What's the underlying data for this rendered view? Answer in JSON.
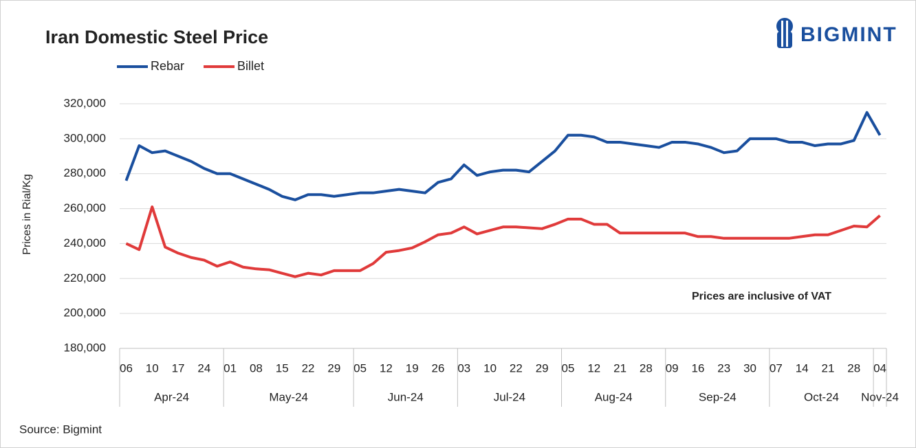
{
  "brand": "BIGMINT",
  "source": "Source: Bigmint",
  "chart_data": {
    "type": "line",
    "title": "Iran Domestic Steel Price",
    "y_label": "Prices in Rial/Kg",
    "annotation": "Prices are inclusive of VAT",
    "legend": "top-left",
    "grid": true,
    "categories": [
      "06",
      null,
      "10",
      null,
      "17",
      null,
      "24",
      null,
      "01",
      null,
      "08",
      null,
      "15",
      null,
      "22",
      null,
      "29",
      null,
      "05",
      null,
      "12",
      null,
      "19",
      null,
      "26",
      null,
      "03",
      null,
      "10",
      null,
      "22",
      null,
      "29",
      null,
      "05",
      null,
      "12",
      null,
      "21",
      null,
      "28",
      null,
      "09",
      null,
      "16",
      null,
      "23",
      null,
      "30",
      null,
      "07",
      null,
      "14",
      null,
      "21",
      null,
      "28",
      null,
      "04"
    ],
    "category_groups": [
      "Apr-24",
      "Apr-24",
      "Apr-24",
      "Apr-24",
      "Apr-24",
      "Apr-24",
      "Apr-24",
      "Apr-24",
      "May-24",
      "May-24",
      "May-24",
      "May-24",
      "May-24",
      "May-24",
      "May-24",
      "May-24",
      "May-24",
      "May-24",
      "Jun-24",
      "Jun-24",
      "Jun-24",
      "Jun-24",
      "Jun-24",
      "Jun-24",
      "Jun-24",
      "Jun-24",
      "Jul-24",
      "Jul-24",
      "Jul-24",
      "Jul-24",
      "Jul-24",
      "Jul-24",
      "Jul-24",
      "Jul-24",
      "Aug-24",
      "Aug-24",
      "Aug-24",
      "Aug-24",
      "Aug-24",
      "Aug-24",
      "Aug-24",
      "Aug-24",
      "Sep-24",
      "Sep-24",
      "Sep-24",
      "Sep-24",
      "Sep-24",
      "Sep-24",
      "Sep-24",
      "Sep-24",
      "Oct-24",
      "Oct-24",
      "Oct-24",
      "Oct-24",
      "Oct-24",
      "Oct-24",
      "Oct-24",
      "Oct-24",
      "Nov-24"
    ],
    "series": [
      {
        "name": "Rebar",
        "color": "#1a4f9e",
        "values": [
          276000,
          296000,
          292000,
          293000,
          290000,
          287000,
          283000,
          280000,
          280000,
          277000,
          274000,
          271000,
          267000,
          265000,
          268000,
          268000,
          267000,
          268000,
          269000,
          269000,
          270000,
          271000,
          270000,
          269000,
          275000,
          277000,
          285000,
          279000,
          281000,
          282000,
          282000,
          281000,
          287000,
          293000,
          302000,
          302000,
          301000,
          298000,
          298000,
          297000,
          296000,
          295000,
          298000,
          298000,
          297000,
          295000,
          292000,
          293000,
          300000,
          300000,
          300000,
          298000,
          298000,
          296000,
          297000,
          297000,
          299000,
          315000,
          302000
        ]
      },
      {
        "name": "Billet",
        "color": "#e03a3a",
        "values": [
          240000,
          236500,
          261000,
          238000,
          234500,
          232000,
          230500,
          227000,
          229500,
          226500,
          225500,
          225000,
          223000,
          221000,
          223000,
          222000,
          224500,
          224500,
          224500,
          228500,
          235000,
          236000,
          237500,
          241000,
          245000,
          246000,
          249500,
          245500,
          247500,
          249500,
          249500,
          249000,
          248500,
          251000,
          254000,
          254000,
          251000,
          251000,
          246000,
          246000,
          246000,
          246000,
          246000,
          246000,
          244000,
          244000,
          243000,
          243000,
          243000,
          243000,
          243000,
          243000,
          244000,
          245000,
          245000,
          247500,
          250000,
          249500,
          256000
        ]
      }
    ],
    "ylim": [
      180000,
      320000
    ],
    "yticks": [
      {
        "value": 180000,
        "label": "180,000"
      },
      {
        "value": 200000,
        "label": "200,000"
      },
      {
        "value": 220000,
        "label": "220,000"
      },
      {
        "value": 240000,
        "label": "240,000"
      },
      {
        "value": 260000,
        "label": "260,000"
      },
      {
        "value": 280000,
        "label": "280,000"
      },
      {
        "value": 300000,
        "label": "300,000"
      },
      {
        "value": 320000,
        "label": "320,000"
      }
    ]
  }
}
